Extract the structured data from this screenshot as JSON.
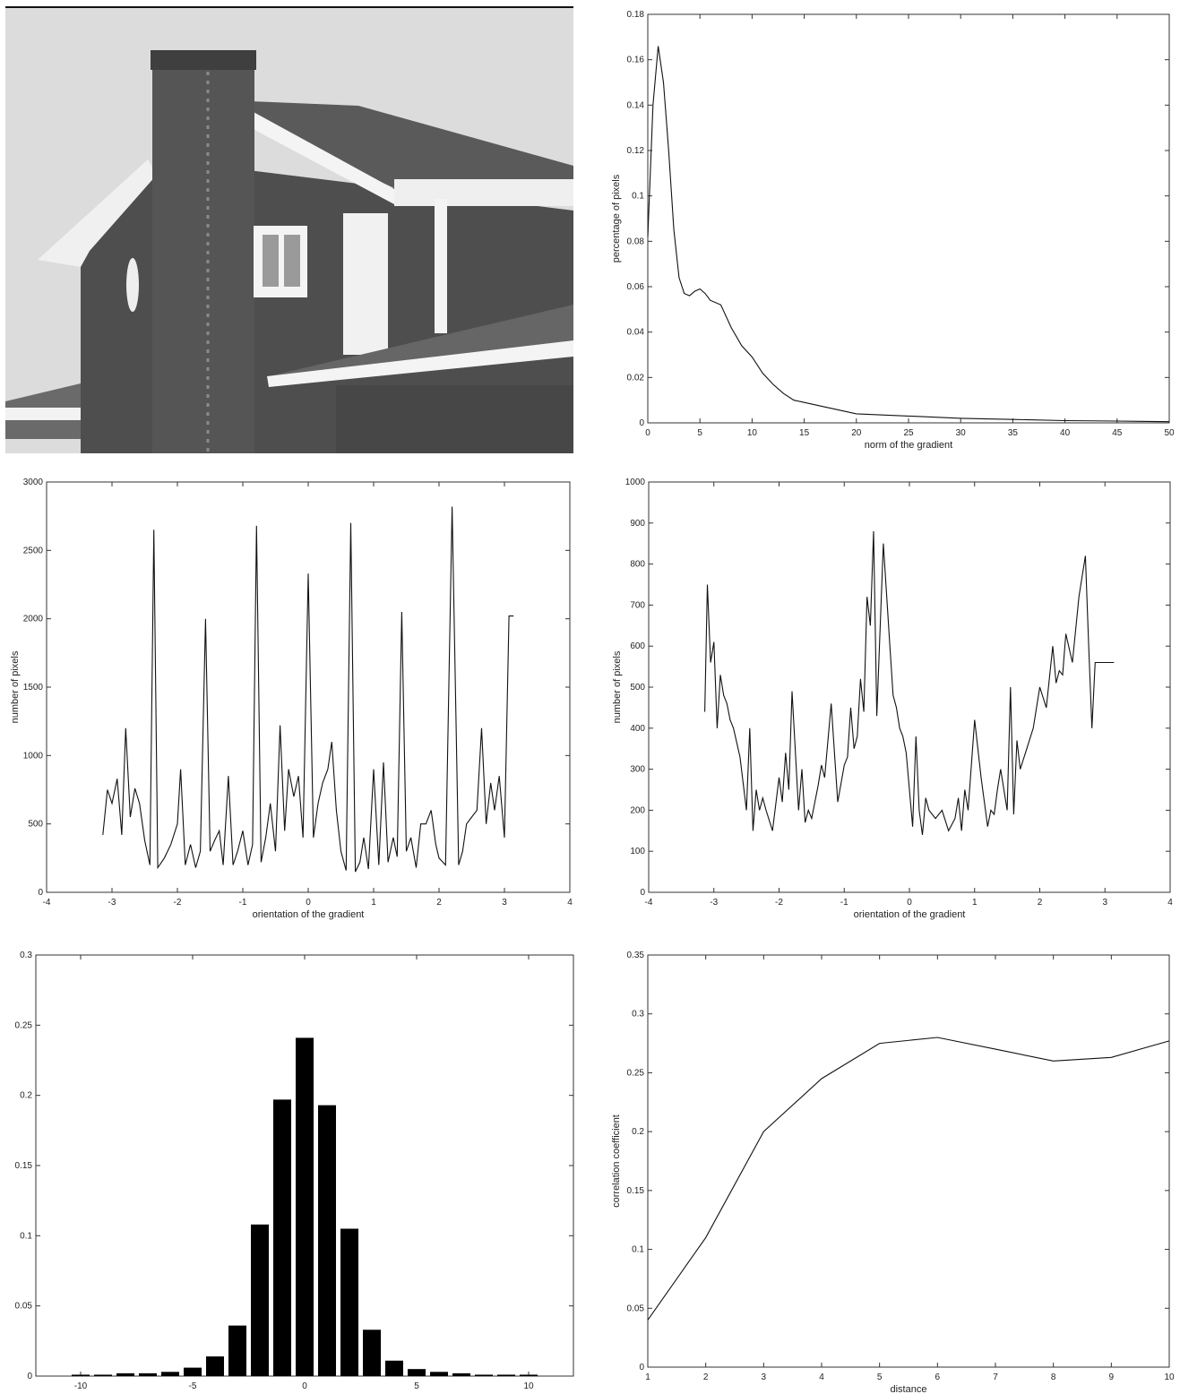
{
  "figure": {
    "photo": {
      "subject": "grayscale photograph of a brick house with chimney and white gutters"
    }
  },
  "chart_data": [
    {
      "id": "norm",
      "type": "line",
      "xlabel": "norm of the gradient",
      "ylabel": "percentage of pixels",
      "xlim": [
        0,
        50
      ],
      "ylim": [
        0,
        0.18
      ],
      "xticks": [
        0,
        5,
        10,
        15,
        20,
        25,
        30,
        35,
        40,
        45,
        50
      ],
      "yticks": [
        0,
        0.02,
        0.04,
        0.06,
        0.08,
        0.1,
        0.12,
        0.14,
        0.16,
        0.18
      ],
      "x": [
        0,
        0.5,
        1,
        1.5,
        2,
        2.5,
        3,
        3.5,
        4,
        4.5,
        5,
        5.5,
        6,
        7,
        8,
        9,
        10,
        11,
        12,
        13,
        14,
        15,
        17,
        20,
        25,
        30,
        35,
        40,
        45,
        50
      ],
      "y": [
        0.082,
        0.14,
        0.166,
        0.15,
        0.12,
        0.085,
        0.064,
        0.057,
        0.056,
        0.058,
        0.059,
        0.057,
        0.054,
        0.052,
        0.042,
        0.034,
        0.029,
        0.022,
        0.017,
        0.013,
        0.01,
        0.009,
        0.007,
        0.004,
        0.003,
        0.002,
        0.0015,
        0.001,
        0.0008,
        0.0005
      ]
    },
    {
      "id": "orientation-spiky",
      "type": "line",
      "xlabel": "orientation of the gradient",
      "ylabel": "number of pixels",
      "xlim": [
        -4,
        4
      ],
      "ylim": [
        0,
        3000
      ],
      "xticks": [
        -4,
        -3,
        -2,
        -1,
        0,
        1,
        2,
        3,
        4
      ],
      "yticks": [
        0,
        500,
        1000,
        1500,
        2000,
        2500,
        3000
      ],
      "x": [
        -3.14,
        -3.07,
        -3.0,
        -2.92,
        -2.85,
        -2.79,
        -2.72,
        -2.65,
        -2.58,
        -2.5,
        -2.42,
        -2.36,
        -2.3,
        -2.2,
        -2.1,
        -2.0,
        -1.95,
        -1.88,
        -1.8,
        -1.72,
        -1.65,
        -1.57,
        -1.5,
        -1.43,
        -1.36,
        -1.3,
        -1.22,
        -1.15,
        -1.08,
        -1.0,
        -0.92,
        -0.85,
        -0.79,
        -0.72,
        -0.65,
        -0.58,
        -0.5,
        -0.43,
        -0.36,
        -0.3,
        -0.22,
        -0.15,
        -0.08,
        0.0,
        0.08,
        0.15,
        0.22,
        0.3,
        0.36,
        0.43,
        0.5,
        0.58,
        0.65,
        0.72,
        0.79,
        0.85,
        0.92,
        1.0,
        1.08,
        1.15,
        1.22,
        1.3,
        1.36,
        1.43,
        1.5,
        1.57,
        1.65,
        1.72,
        1.8,
        1.88,
        1.95,
        2.0,
        2.1,
        2.2,
        2.3,
        2.36,
        2.42,
        2.5,
        2.58,
        2.65,
        2.72,
        2.79,
        2.85,
        2.92,
        3.0,
        3.07,
        3.14
      ],
      "y": [
        420,
        750,
        650,
        830,
        420,
        1200,
        550,
        760,
        650,
        380,
        200,
        2650,
        180,
        250,
        350,
        500,
        900,
        200,
        350,
        180,
        300,
        2000,
        300,
        380,
        450,
        200,
        850,
        200,
        300,
        450,
        200,
        350,
        2680,
        220,
        400,
        650,
        300,
        1220,
        450,
        900,
        700,
        850,
        400,
        2330,
        400,
        650,
        800,
        900,
        1100,
        600,
        300,
        160,
        2700,
        150,
        220,
        400,
        170,
        900,
        200,
        950,
        220,
        400,
        260,
        2050,
        300,
        400,
        180,
        500,
        500,
        600,
        350,
        250,
        200,
        2820,
        200,
        300,
        500,
        550,
        600,
        1200,
        500,
        800,
        600,
        850,
        400,
        2020,
        2020
      ]
    },
    {
      "id": "orientation-smooth",
      "type": "line",
      "xlabel": "orientation of the gradient",
      "ylabel": "number of pixels",
      "xlim": [
        -4,
        4
      ],
      "ylim": [
        0,
        1000
      ],
      "xticks": [
        -4,
        -3,
        -2,
        -1,
        0,
        1,
        2,
        3,
        4
      ],
      "yticks": [
        0,
        100,
        200,
        300,
        400,
        500,
        600,
        700,
        800,
        900,
        1000
      ],
      "x": [
        -3.14,
        -3.1,
        -3.05,
        -3.0,
        -2.95,
        -2.9,
        -2.85,
        -2.8,
        -2.75,
        -2.7,
        -2.6,
        -2.5,
        -2.45,
        -2.4,
        -2.35,
        -2.3,
        -2.25,
        -2.2,
        -2.1,
        -2.0,
        -1.95,
        -1.9,
        -1.85,
        -1.8,
        -1.7,
        -1.65,
        -1.6,
        -1.55,
        -1.5,
        -1.45,
        -1.4,
        -1.35,
        -1.3,
        -1.2,
        -1.1,
        -1.0,
        -0.95,
        -0.9,
        -0.85,
        -0.8,
        -0.75,
        -0.7,
        -0.65,
        -0.6,
        -0.55,
        -0.5,
        -0.4,
        -0.3,
        -0.25,
        -0.2,
        -0.15,
        -0.1,
        -0.05,
        0.0,
        0.05,
        0.1,
        0.15,
        0.2,
        0.25,
        0.3,
        0.4,
        0.5,
        0.6,
        0.7,
        0.75,
        0.8,
        0.85,
        0.9,
        1.0,
        1.1,
        1.2,
        1.25,
        1.3,
        1.35,
        1.4,
        1.5,
        1.55,
        1.6,
        1.65,
        1.7,
        1.8,
        1.9,
        2.0,
        2.1,
        2.2,
        2.25,
        2.3,
        2.35,
        2.4,
        2.5,
        2.6,
        2.7,
        2.75,
        2.8,
        2.85,
        2.9,
        2.95,
        3.0,
        3.05,
        3.1,
        3.14
      ],
      "y": [
        440,
        750,
        560,
        610,
        400,
        530,
        480,
        460,
        420,
        400,
        330,
        200,
        400,
        150,
        250,
        200,
        230,
        200,
        150,
        280,
        220,
        340,
        250,
        490,
        200,
        300,
        170,
        200,
        180,
        220,
        260,
        310,
        280,
        460,
        220,
        310,
        330,
        450,
        350,
        380,
        520,
        440,
        720,
        650,
        880,
        430,
        850,
        600,
        480,
        450,
        400,
        380,
        340,
        250,
        160,
        380,
        200,
        140,
        230,
        200,
        180,
        200,
        150,
        180,
        230,
        150,
        250,
        200,
        420,
        280,
        160,
        200,
        190,
        250,
        300,
        200,
        500,
        190,
        370,
        300,
        350,
        400,
        500,
        450,
        600,
        510,
        540,
        530,
        630,
        560,
        720,
        820,
        600,
        400,
        560,
        560,
        560,
        560,
        560,
        560,
        560
      ]
    },
    {
      "id": "diff-histogram",
      "type": "bar",
      "xlim": [
        -12,
        12
      ],
      "ylim": [
        0,
        0.3
      ],
      "xticks": [
        -10,
        -5,
        0,
        5,
        10
      ],
      "yticks": [
        0,
        0.05,
        0.1,
        0.15,
        0.2,
        0.25,
        0.3
      ],
      "categories": [
        -10,
        -9,
        -8,
        -7,
        -6,
        -5,
        -4,
        -3,
        -2,
        -1,
        0,
        1,
        2,
        3,
        4,
        5,
        6,
        7,
        8,
        9,
        10
      ],
      "values": [
        0.001,
        0.001,
        0.002,
        0.002,
        0.003,
        0.006,
        0.014,
        0.036,
        0.108,
        0.197,
        0.241,
        0.193,
        0.105,
        0.033,
        0.011,
        0.005,
        0.003,
        0.002,
        0.001,
        0.001,
        0.001
      ]
    },
    {
      "id": "correlation",
      "type": "line",
      "xlabel": "distance",
      "ylabel": "correlation coefficient",
      "xlim": [
        1,
        10
      ],
      "ylim": [
        0,
        0.35
      ],
      "xticks": [
        1,
        2,
        3,
        4,
        5,
        6,
        7,
        8,
        9,
        10
      ],
      "yticks": [
        0,
        0.05,
        0.1,
        0.15,
        0.2,
        0.25,
        0.3,
        0.35
      ],
      "x": [
        1,
        2,
        3,
        4,
        5,
        6,
        7,
        8,
        9,
        10
      ],
      "y": [
        0.04,
        0.11,
        0.2,
        0.245,
        0.275,
        0.28,
        0.27,
        0.26,
        0.263,
        0.277
      ]
    }
  ]
}
